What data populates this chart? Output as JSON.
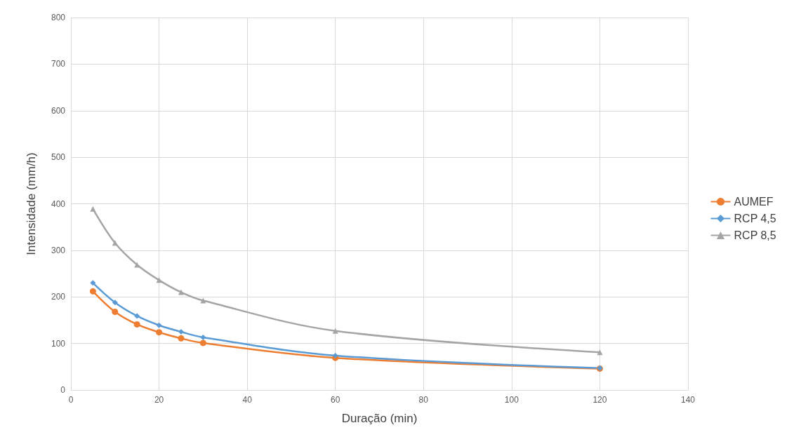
{
  "chart_data": {
    "type": "line",
    "xlabel": "Duração (min)",
    "ylabel": "Intensidade (mm/h)",
    "x": [
      5,
      10,
      15,
      20,
      25,
      30,
      60,
      120
    ],
    "series": [
      {
        "name": "AUMEF",
        "color": "#ed7d31",
        "marker": "circle",
        "values": [
          212,
          168,
          141,
          124,
          111,
          101,
          69,
          46
        ]
      },
      {
        "name": "RCP 4,5",
        "color": "#5b9bd5",
        "marker": "diamond",
        "values": [
          230,
          188,
          159,
          139,
          125,
          113,
          74,
          47
        ]
      },
      {
        "name": "RCP 8,5",
        "color": "#a5a5a5",
        "marker": "triangle",
        "values": [
          389,
          316,
          269,
          236,
          210,
          192,
          127,
          81
        ]
      }
    ],
    "xlim": [
      0,
      140
    ],
    "xticks": [
      0,
      20,
      40,
      60,
      80,
      100,
      120,
      140
    ],
    "ylim": [
      0,
      800
    ],
    "yticks": [
      0,
      100,
      200,
      300,
      400,
      500,
      600,
      700,
      800
    ],
    "grid": true,
    "legend": "right"
  }
}
